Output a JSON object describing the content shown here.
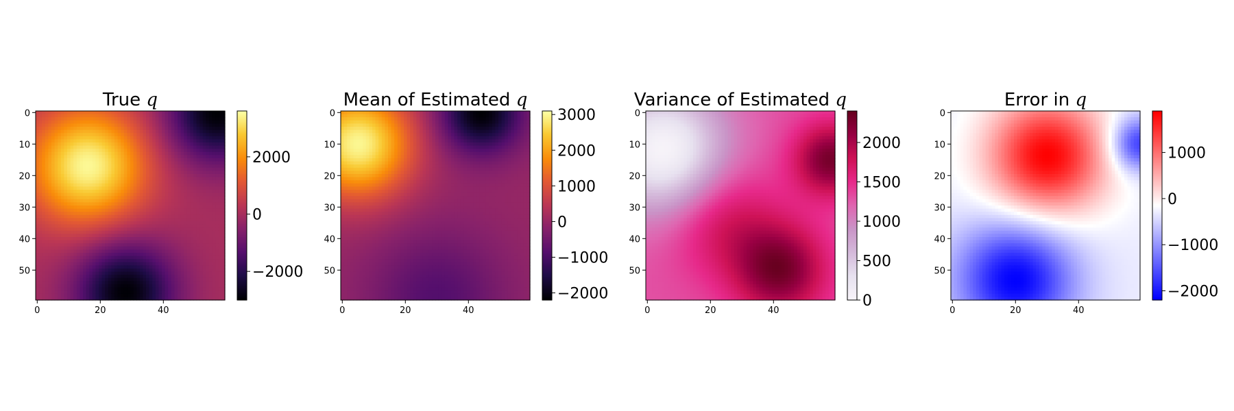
{
  "chart_data": [
    {
      "type": "heatmap",
      "title": "True",
      "title_var": "q",
      "grid_size": 60,
      "colormap": "inferno",
      "vmin": -3000,
      "vmax": 3600,
      "x_ticks": [
        0,
        20,
        40
      ],
      "y_ticks": [
        0,
        10,
        20,
        30,
        40,
        50
      ],
      "colorbar_ticks": [
        2000,
        0,
        -2000
      ],
      "colorbar_tick_labels": [
        "2000",
        "0",
        "−2000"
      ],
      "field_peaks": [
        {
          "row": 17,
          "col": 16,
          "value": 3500,
          "spread": 13
        },
        {
          "row": 57,
          "col": 28,
          "value": -3000,
          "spread": 11
        },
        {
          "row": 0,
          "col": 57,
          "value": -3000,
          "spread": 11
        }
      ]
    },
    {
      "type": "heatmap",
      "title": "Mean of Estimated",
      "title_var": "q",
      "grid_size": 60,
      "colormap": "inferno",
      "vmin": -2200,
      "vmax": 3100,
      "x_ticks": [
        0,
        20,
        40
      ],
      "y_ticks": [
        0,
        10,
        20,
        30,
        40,
        50
      ],
      "colorbar_ticks": [
        3000,
        2000,
        1000,
        0,
        -1000,
        -2000
      ],
      "colorbar_tick_labels": [
        "3000",
        "2000",
        "1000",
        "0",
        "−1000",
        "−2000"
      ],
      "field_peaks": [
        {
          "row": 10,
          "col": 5,
          "value": 3000,
          "spread": 12
        },
        {
          "row": 0,
          "col": 44,
          "value": -2200,
          "spread": 9
        },
        {
          "row": 59,
          "col": 30,
          "value": -900,
          "spread": 15
        }
      ]
    },
    {
      "type": "heatmap",
      "title": "Variance of Estimated",
      "title_var": "q",
      "grid_size": 60,
      "colormap": "PuRd",
      "vmin": 0,
      "vmax": 2400,
      "x_ticks": [
        0,
        20,
        40
      ],
      "y_ticks": [
        0,
        10,
        20,
        30,
        40,
        50
      ],
      "colorbar_ticks": [
        2000,
        1500,
        1000,
        500,
        0
      ],
      "colorbar_tick_labels": [
        "2000",
        "1500",
        "1000",
        "500",
        "0"
      ],
      "field_peaks": [
        {
          "row": 12,
          "col": 5,
          "value": 0,
          "spread": 14
        },
        {
          "row": 50,
          "col": 42,
          "value": 2300,
          "spread": 10
        },
        {
          "row": 15,
          "col": 58,
          "value": 2300,
          "spread": 8
        },
        {
          "row": 35,
          "col": 25,
          "value": 1800,
          "spread": 12
        }
      ]
    },
    {
      "type": "heatmap",
      "title": "Error in",
      "title_var": "q",
      "grid_size": 60,
      "colormap": "bwr",
      "vmin": -2200,
      "vmax": 1900,
      "x_ticks": [
        0,
        20,
        40
      ],
      "y_ticks": [
        0,
        10,
        20,
        30,
        40,
        50
      ],
      "colorbar_ticks": [
        1000,
        0,
        -1000,
        -2000
      ],
      "colorbar_tick_labels": [
        "1000",
        "0",
        "−1000",
        "−2000"
      ],
      "field_peaks": [
        {
          "row": 14,
          "col": 30,
          "value": 1900,
          "spread": 13
        },
        {
          "row": 53,
          "col": 20,
          "value": -2200,
          "spread": 13
        },
        {
          "row": 10,
          "col": 59,
          "value": -1800,
          "spread": 6
        }
      ]
    }
  ]
}
